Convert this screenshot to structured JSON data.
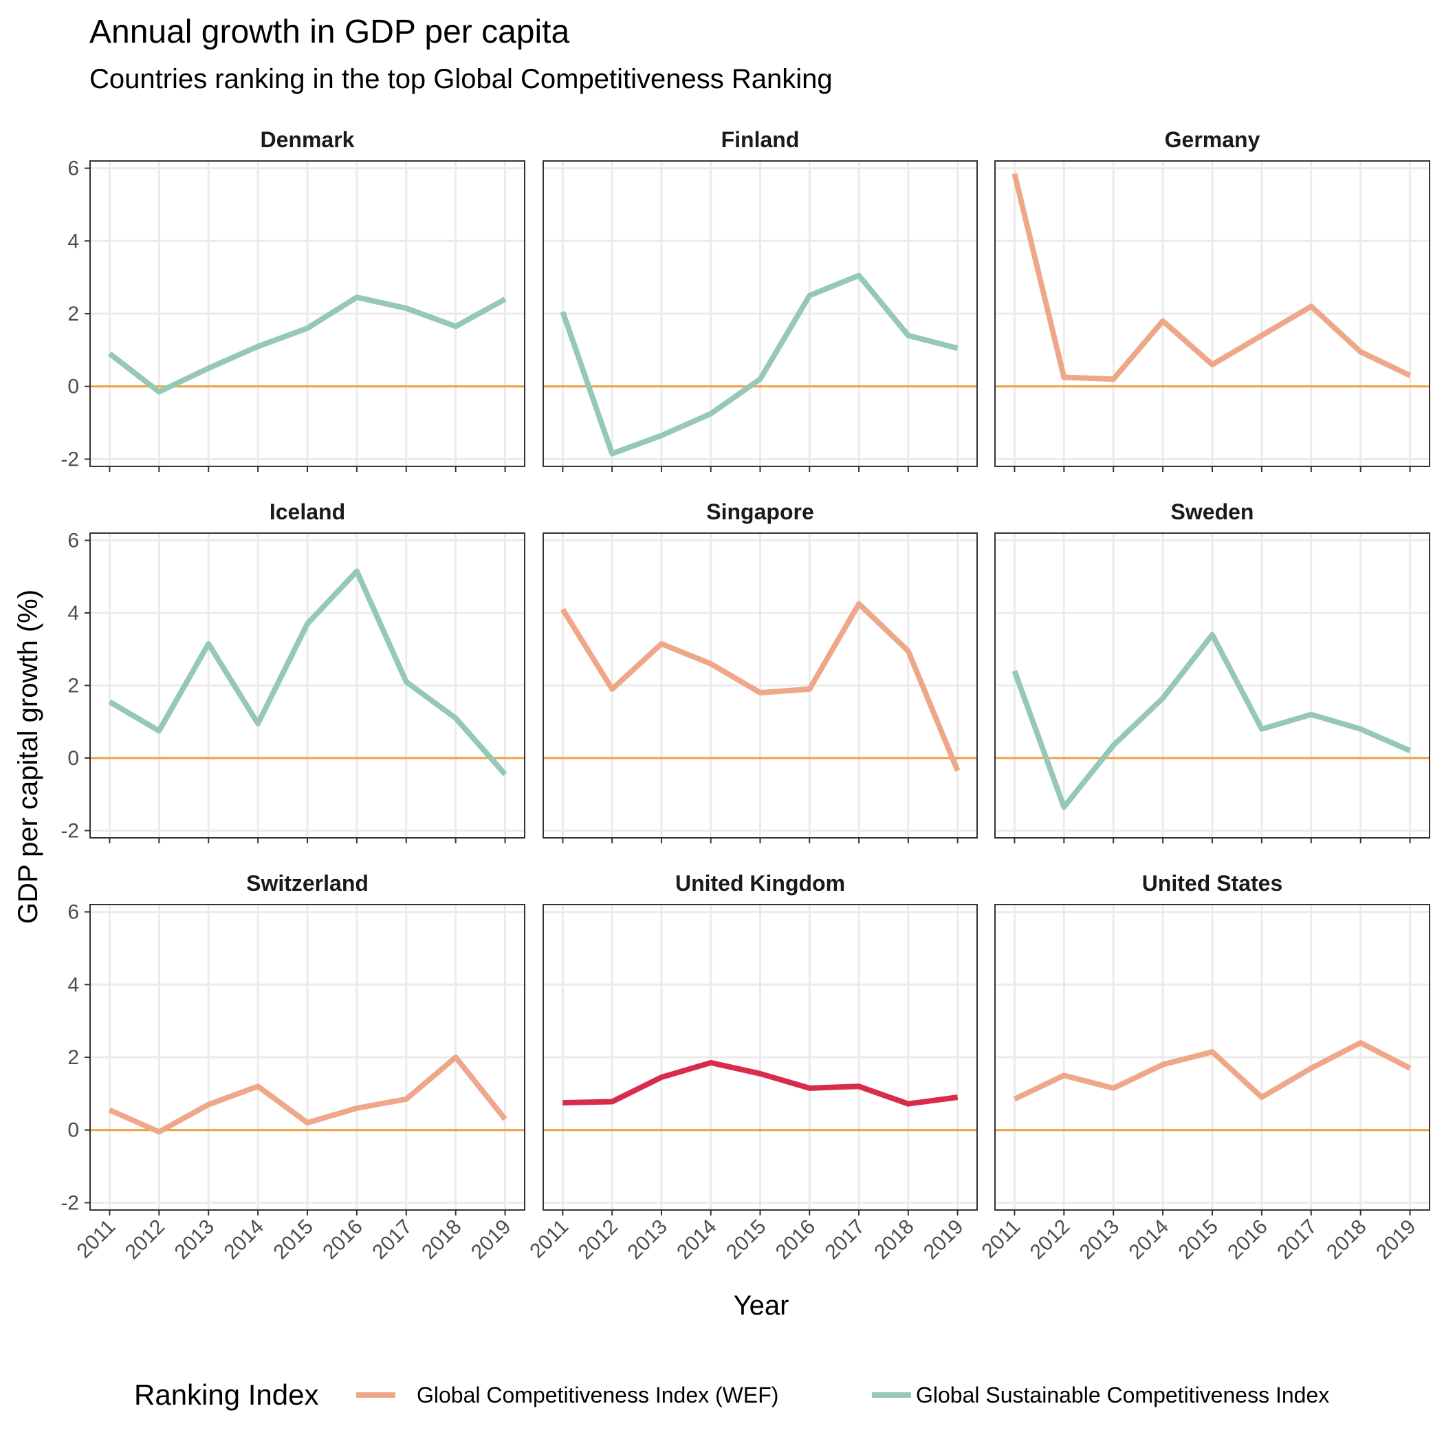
{
  "chart_data": {
    "type": "line",
    "title": "Annual growth in GDP per capita",
    "subtitle": "Countries ranking in the top Global Competitiveness Ranking",
    "xlabel": "Year",
    "ylabel": "GDP per capital growth (%)",
    "x": [
      2011,
      2012,
      2013,
      2014,
      2015,
      2016,
      2017,
      2018,
      2019
    ],
    "x_ticks": [
      "2011",
      "2012",
      "2013",
      "2014",
      "2015",
      "2016",
      "2017",
      "2018",
      "2019"
    ],
    "ylim": [
      -2.2,
      6.2
    ],
    "y_ticks": [
      -2,
      0,
      2,
      4,
      6
    ],
    "y_tick_labels": [
      "-2",
      "0",
      "2",
      "4",
      "6"
    ],
    "grid": true,
    "reference_line": {
      "y": 0,
      "color": "#f0a040"
    },
    "legend": {
      "title": "Ranking Index",
      "position": "bottom",
      "entries": [
        {
          "key": "gci",
          "label": "Global Competitiveness Index (WEF)",
          "color": "#eea889"
        },
        {
          "key": "gsci",
          "label": "Global Sustainable Competitiveness Index",
          "color": "#95c9b5"
        }
      ]
    },
    "colors": {
      "gci": "#eea889",
      "gsci": "#95c9b5",
      "highlight": "#d92b4b",
      "zero": "#f0a040"
    },
    "panels": [
      {
        "name": "Denmark",
        "index": "gsci",
        "values": [
          0.9,
          -0.15,
          0.5,
          1.1,
          1.6,
          2.45,
          2.15,
          1.65,
          2.4
        ]
      },
      {
        "name": "Finland",
        "index": "gsci",
        "values": [
          2.05,
          -1.85,
          -1.35,
          -0.75,
          0.2,
          2.5,
          3.05,
          1.4,
          1.05
        ]
      },
      {
        "name": "Germany",
        "index": "gci",
        "values": [
          5.85,
          0.25,
          0.2,
          1.8,
          0.6,
          1.4,
          2.2,
          0.95,
          0.3
        ]
      },
      {
        "name": "Iceland",
        "index": "gsci",
        "values": [
          1.55,
          0.75,
          3.15,
          0.95,
          3.7,
          5.15,
          2.1,
          1.1,
          -0.45
        ]
      },
      {
        "name": "Singapore",
        "index": "gci",
        "values": [
          4.1,
          1.9,
          3.15,
          2.6,
          1.8,
          1.9,
          4.25,
          2.95,
          -0.35
        ]
      },
      {
        "name": "Sweden",
        "index": "gsci",
        "values": [
          2.4,
          -1.35,
          0.35,
          1.65,
          3.4,
          0.8,
          1.2,
          0.8,
          0.2
        ]
      },
      {
        "name": "Switzerland",
        "index": "gci",
        "values": [
          0.55,
          -0.05,
          0.7,
          1.2,
          0.2,
          0.6,
          0.85,
          2.0,
          0.3
        ]
      },
      {
        "name": "United Kingdom",
        "index": "highlight",
        "values": [
          0.75,
          0.78,
          1.45,
          1.85,
          1.55,
          1.15,
          1.2,
          0.72,
          0.9
        ]
      },
      {
        "name": "United States",
        "index": "gci",
        "values": [
          0.85,
          1.5,
          1.15,
          1.8,
          2.15,
          0.9,
          1.7,
          2.4,
          1.7
        ]
      }
    ]
  }
}
